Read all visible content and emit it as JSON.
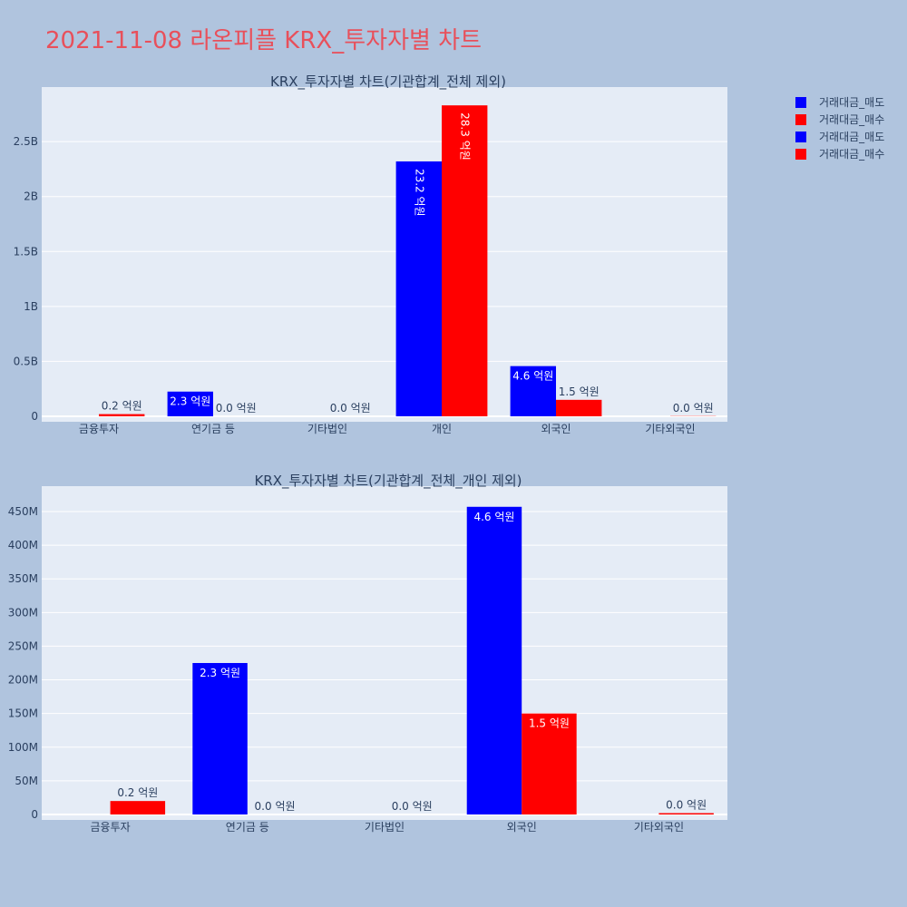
{
  "page": {
    "title": "2021-11-08 라온피플 KRX_투자자별 차트"
  },
  "legend": [
    {
      "label": "거래대금_매도",
      "color": "#0000ff"
    },
    {
      "label": "거래대금_매수",
      "color": "#ff0000"
    },
    {
      "label": "거래대금_매도",
      "color": "#0000ff"
    },
    {
      "label": "거래대금_매수",
      "color": "#ff0000"
    }
  ],
  "chart_data": [
    {
      "type": "bar",
      "title": "KRX_투자자별 차트(기관합계_전체 제외)",
      "categories": [
        "금융투자",
        "연기금 등",
        "기타법인",
        "개인",
        "외국인",
        "기타외국인"
      ],
      "series": [
        {
          "name": "거래대금_매도",
          "color": "#0000ff",
          "values": [
            0,
            225000000,
            0,
            2320000000,
            457000000,
            0
          ],
          "labels": [
            "",
            "2.3 억원",
            "",
            "23.2 억원",
            "4.6 억원",
            ""
          ]
        },
        {
          "name": "거래대금_매수",
          "color": "#ff0000",
          "values": [
            20000000,
            0,
            0,
            2830000000,
            150000000,
            2000000
          ],
          "labels": [
            "0.2 억원",
            "0.0 억원",
            "0.0 억원",
            "28.3 억원",
            "1.5 억원",
            "0.0 억원"
          ]
        }
      ],
      "yticks": [
        0,
        500000000,
        1000000000,
        1500000000,
        2000000000,
        2500000000
      ],
      "ytick_labels": [
        "0",
        "0.5B",
        "1B",
        "1.5B",
        "2B",
        "2.5B"
      ],
      "ylim": [
        0,
        2980000000
      ],
      "grid": true
    },
    {
      "type": "bar",
      "title": "KRX_투자자별 차트(기관합계_전체_개인 제외)",
      "categories": [
        "금융투자",
        "연기금 등",
        "기타법인",
        "외국인",
        "기타외국인"
      ],
      "series": [
        {
          "name": "거래대금_매도",
          "color": "#0000ff",
          "values": [
            0,
            225000000,
            0,
            457000000,
            0
          ],
          "labels": [
            "",
            "2.3 억원",
            "",
            "4.6 억원",
            ""
          ]
        },
        {
          "name": "거래대금_매수",
          "color": "#ff0000",
          "values": [
            20000000,
            0,
            0,
            150000000,
            2000000
          ],
          "labels": [
            "0.2 억원",
            "0.0 억원",
            "0.0 억원",
            "1.5 억원",
            "0.0 억원"
          ]
        }
      ],
      "yticks": [
        0,
        50000000,
        100000000,
        150000000,
        200000000,
        250000000,
        300000000,
        350000000,
        400000000,
        450000000
      ],
      "ytick_labels": [
        "0",
        "50M",
        "100M",
        "150M",
        "200M",
        "250M",
        "300M",
        "350M",
        "400M",
        "450M"
      ],
      "ylim": [
        0,
        485000000
      ],
      "grid": true
    }
  ]
}
